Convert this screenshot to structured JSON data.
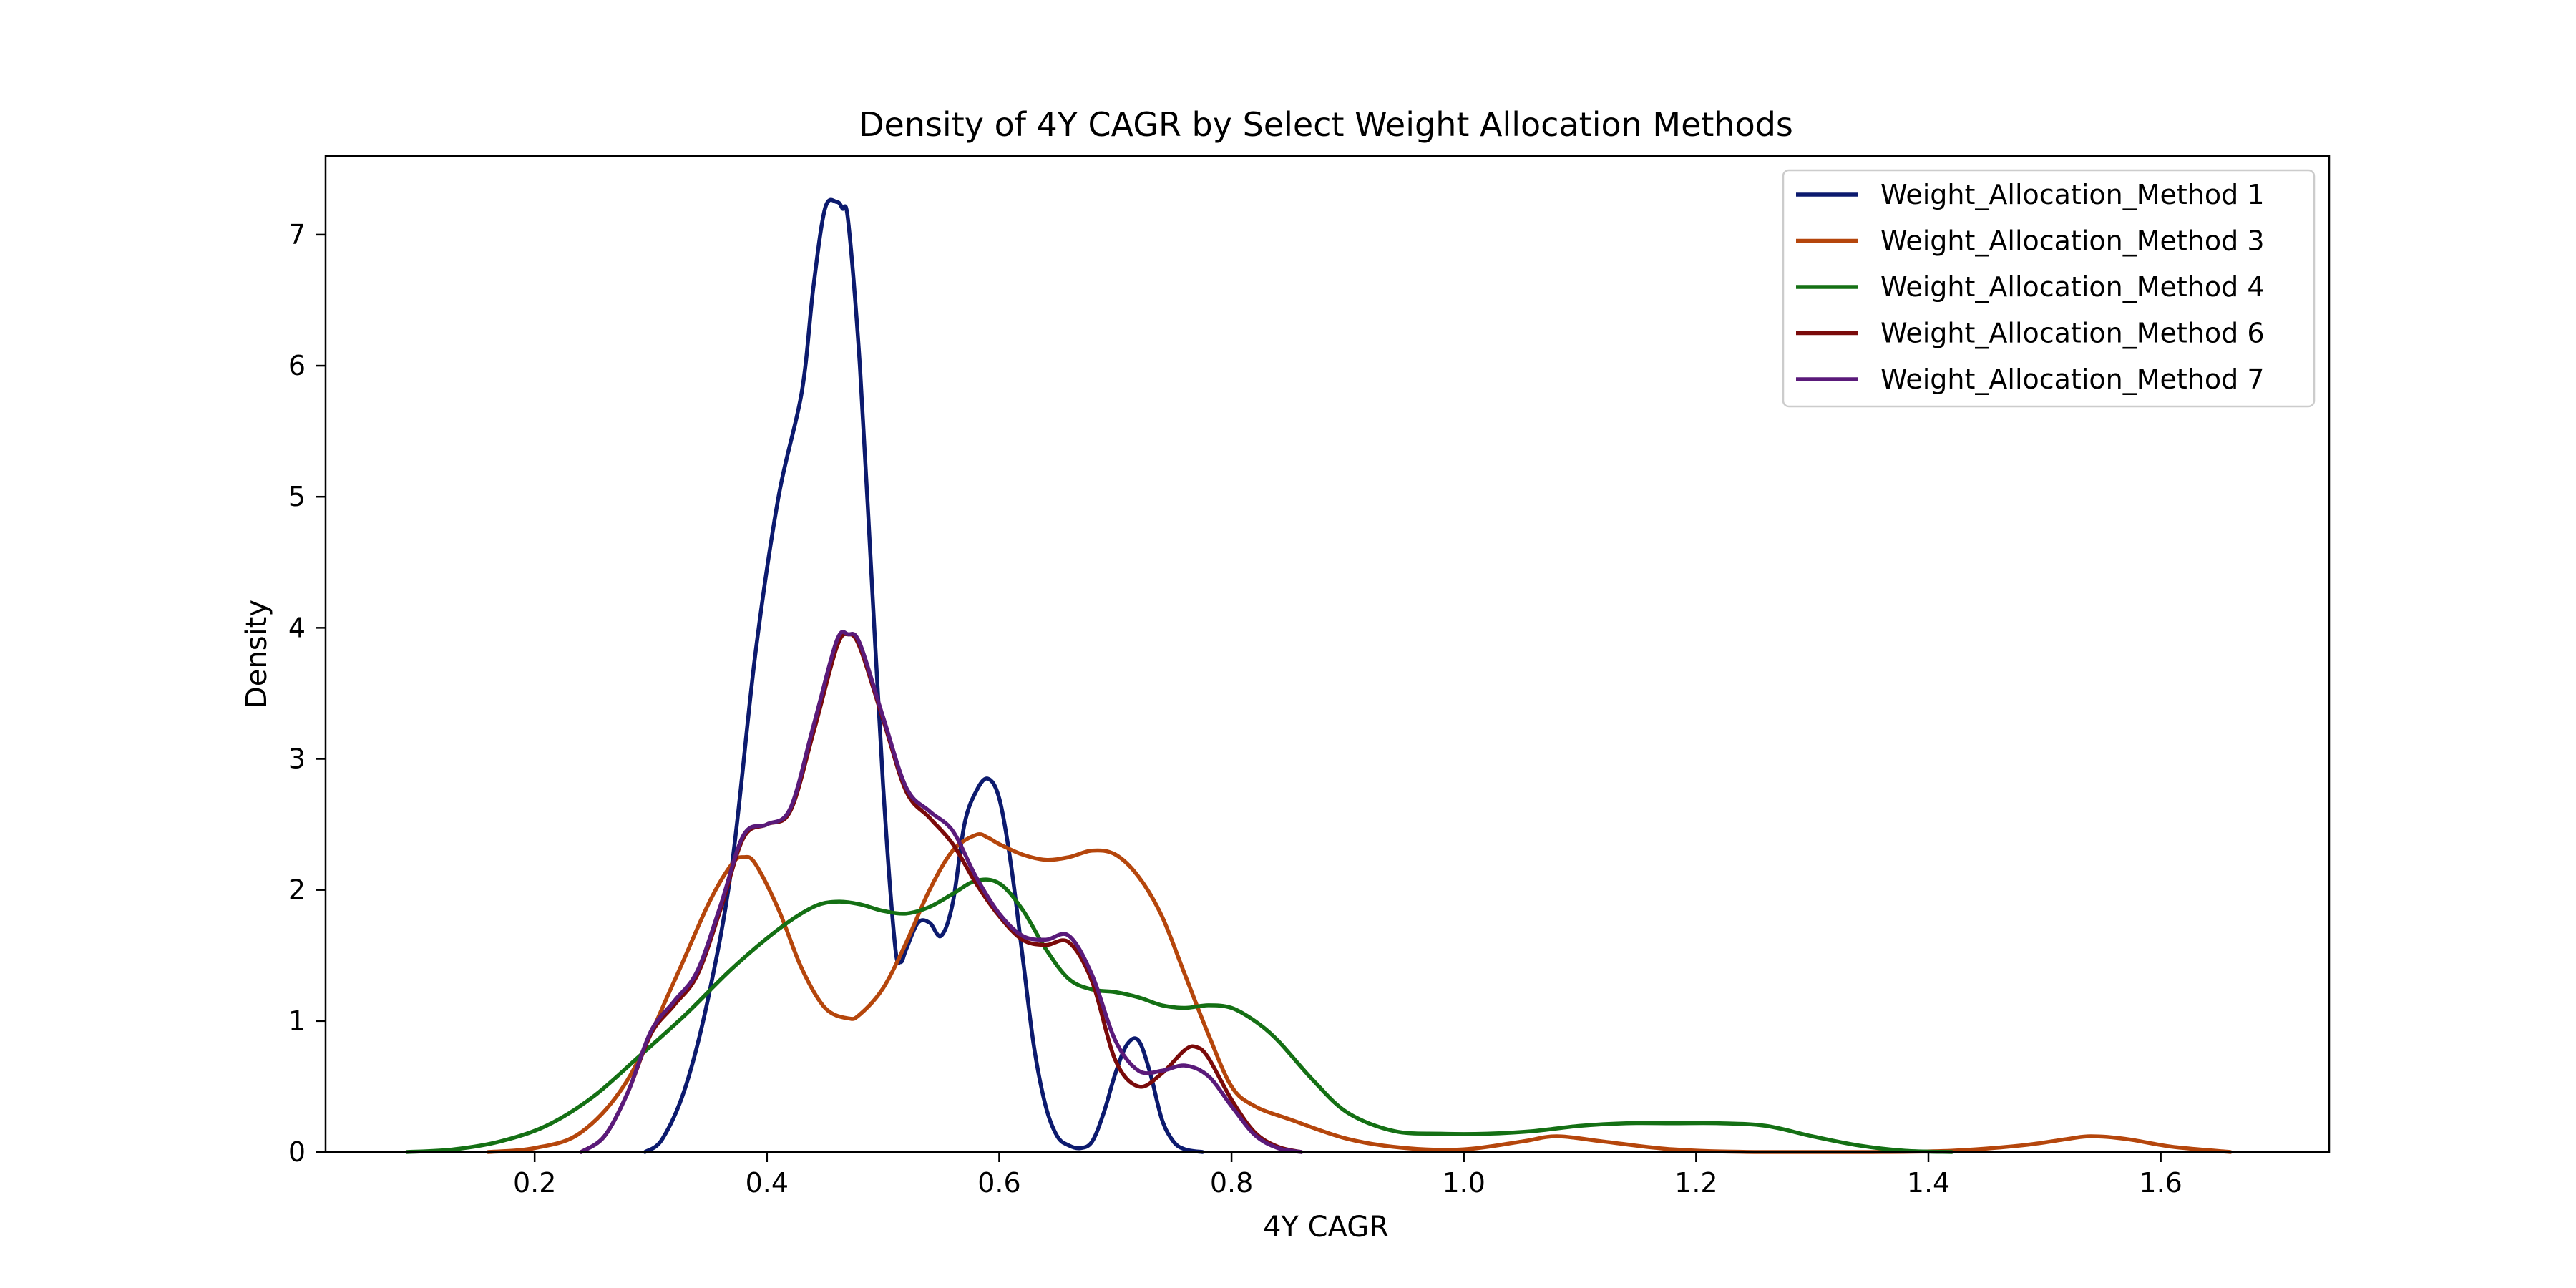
{
  "chart_data": {
    "type": "line",
    "title": "Density of 4Y CAGR by Select Weight Allocation Methods",
    "xlabel": "4Y CAGR",
    "ylabel": "Density",
    "xlim": [
      0.02,
      1.745
    ],
    "ylim": [
      0,
      7.6
    ],
    "x_ticks": [
      0.2,
      0.4,
      0.6,
      0.8,
      1.0,
      1.2,
      1.4,
      1.6
    ],
    "x_tick_labels": [
      "0.2",
      "0.4",
      "0.6",
      "0.8",
      "1.0",
      "1.2",
      "1.4",
      "1.6"
    ],
    "y_ticks": [
      0,
      1,
      2,
      3,
      4,
      5,
      6,
      7
    ],
    "y_tick_labels": [
      "0",
      "1",
      "2",
      "3",
      "4",
      "5",
      "6",
      "7"
    ],
    "grid": false,
    "legend_position": "top-right",
    "series": [
      {
        "name": "Weight_Allocation_Method 1",
        "color": "#0c1a6e",
        "x": [
          0.295,
          0.31,
          0.33,
          0.35,
          0.37,
          0.39,
          0.41,
          0.43,
          0.44,
          0.45,
          0.46,
          0.465,
          0.47,
          0.48,
          0.49,
          0.5,
          0.51,
          0.515,
          0.52,
          0.53,
          0.54,
          0.55,
          0.56,
          0.57,
          0.58,
          0.59,
          0.6,
          0.61,
          0.62,
          0.63,
          0.64,
          0.65,
          0.66,
          0.67,
          0.68,
          0.69,
          0.7,
          0.71,
          0.72,
          0.73,
          0.74,
          0.75,
          0.76,
          0.775
        ],
        "y": [
          0.0,
          0.1,
          0.5,
          1.2,
          2.2,
          3.8,
          5.0,
          5.8,
          6.6,
          7.2,
          7.25,
          7.2,
          7.1,
          6.0,
          4.4,
          2.8,
          1.6,
          1.45,
          1.55,
          1.75,
          1.75,
          1.65,
          1.9,
          2.5,
          2.75,
          2.85,
          2.7,
          2.2,
          1.5,
          0.8,
          0.35,
          0.12,
          0.05,
          0.03,
          0.08,
          0.3,
          0.6,
          0.82,
          0.85,
          0.6,
          0.25,
          0.08,
          0.02,
          0.0
        ]
      },
      {
        "name": "Weight_Allocation_Method 3",
        "color": "#b5460c",
        "x": [
          0.16,
          0.2,
          0.24,
          0.28,
          0.32,
          0.35,
          0.37,
          0.38,
          0.39,
          0.41,
          0.43,
          0.45,
          0.47,
          0.48,
          0.5,
          0.52,
          0.54,
          0.56,
          0.58,
          0.59,
          0.6,
          0.62,
          0.64,
          0.66,
          0.68,
          0.7,
          0.72,
          0.74,
          0.76,
          0.78,
          0.8,
          0.82,
          0.85,
          0.9,
          0.95,
          1.0,
          1.05,
          1.08,
          1.12,
          1.18,
          1.25,
          1.35,
          1.42,
          1.48,
          1.52,
          1.54,
          1.57,
          1.61,
          1.66
        ],
        "y": [
          0.0,
          0.03,
          0.15,
          0.55,
          1.3,
          1.9,
          2.2,
          2.25,
          2.2,
          1.85,
          1.4,
          1.1,
          1.02,
          1.05,
          1.25,
          1.6,
          2.0,
          2.3,
          2.42,
          2.4,
          2.35,
          2.27,
          2.23,
          2.25,
          2.3,
          2.27,
          2.1,
          1.8,
          1.35,
          0.9,
          0.5,
          0.35,
          0.25,
          0.1,
          0.03,
          0.02,
          0.08,
          0.12,
          0.08,
          0.02,
          0.0,
          0.0,
          0.01,
          0.05,
          0.1,
          0.12,
          0.1,
          0.04,
          0.0
        ]
      },
      {
        "name": "Weight_Allocation_Method 4",
        "color": "#147014",
        "x": [
          0.09,
          0.13,
          0.17,
          0.21,
          0.25,
          0.29,
          0.33,
          0.37,
          0.41,
          0.44,
          0.46,
          0.48,
          0.5,
          0.52,
          0.54,
          0.56,
          0.58,
          0.6,
          0.62,
          0.64,
          0.66,
          0.68,
          0.7,
          0.72,
          0.74,
          0.76,
          0.78,
          0.8,
          0.82,
          0.84,
          0.87,
          0.9,
          0.94,
          0.98,
          1.02,
          1.06,
          1.1,
          1.14,
          1.18,
          1.22,
          1.26,
          1.3,
          1.34,
          1.38,
          1.42
        ],
        "y": [
          0.0,
          0.02,
          0.08,
          0.2,
          0.42,
          0.73,
          1.05,
          1.4,
          1.7,
          1.87,
          1.91,
          1.89,
          1.84,
          1.82,
          1.87,
          1.97,
          2.07,
          2.05,
          1.85,
          1.55,
          1.32,
          1.24,
          1.22,
          1.18,
          1.12,
          1.1,
          1.12,
          1.1,
          1.0,
          0.85,
          0.55,
          0.3,
          0.16,
          0.14,
          0.14,
          0.16,
          0.2,
          0.22,
          0.22,
          0.22,
          0.2,
          0.12,
          0.05,
          0.01,
          0.0
        ]
      },
      {
        "name": "Weight_Allocation_Method 6",
        "color": "#7a0a0a",
        "x": [
          0.24,
          0.26,
          0.28,
          0.3,
          0.32,
          0.34,
          0.36,
          0.38,
          0.4,
          0.42,
          0.44,
          0.46,
          0.47,
          0.48,
          0.5,
          0.52,
          0.54,
          0.56,
          0.58,
          0.6,
          0.62,
          0.64,
          0.66,
          0.68,
          0.7,
          0.72,
          0.74,
          0.76,
          0.77,
          0.78,
          0.8,
          0.82,
          0.84,
          0.86
        ],
        "y": [
          0.0,
          0.12,
          0.45,
          0.9,
          1.12,
          1.35,
          1.85,
          2.4,
          2.5,
          2.6,
          3.2,
          3.85,
          3.95,
          3.85,
          3.3,
          2.75,
          2.55,
          2.35,
          2.05,
          1.8,
          1.62,
          1.58,
          1.6,
          1.3,
          0.7,
          0.5,
          0.6,
          0.78,
          0.8,
          0.72,
          0.4,
          0.15,
          0.04,
          0.0
        ]
      },
      {
        "name": "Weight_Allocation_Method 7",
        "color": "#5a1a7a",
        "x": [
          0.24,
          0.26,
          0.28,
          0.3,
          0.32,
          0.34,
          0.36,
          0.38,
          0.4,
          0.42,
          0.44,
          0.46,
          0.47,
          0.48,
          0.5,
          0.52,
          0.54,
          0.56,
          0.58,
          0.6,
          0.62,
          0.64,
          0.66,
          0.68,
          0.7,
          0.72,
          0.74,
          0.76,
          0.78,
          0.8,
          0.82,
          0.84,
          0.86
        ],
        "y": [
          0.0,
          0.12,
          0.45,
          0.92,
          1.15,
          1.38,
          1.88,
          2.42,
          2.5,
          2.62,
          3.25,
          3.9,
          3.95,
          3.88,
          3.32,
          2.78,
          2.6,
          2.45,
          2.1,
          1.82,
          1.65,
          1.62,
          1.65,
          1.35,
          0.85,
          0.62,
          0.62,
          0.66,
          0.58,
          0.35,
          0.13,
          0.03,
          0.0
        ]
      }
    ]
  }
}
